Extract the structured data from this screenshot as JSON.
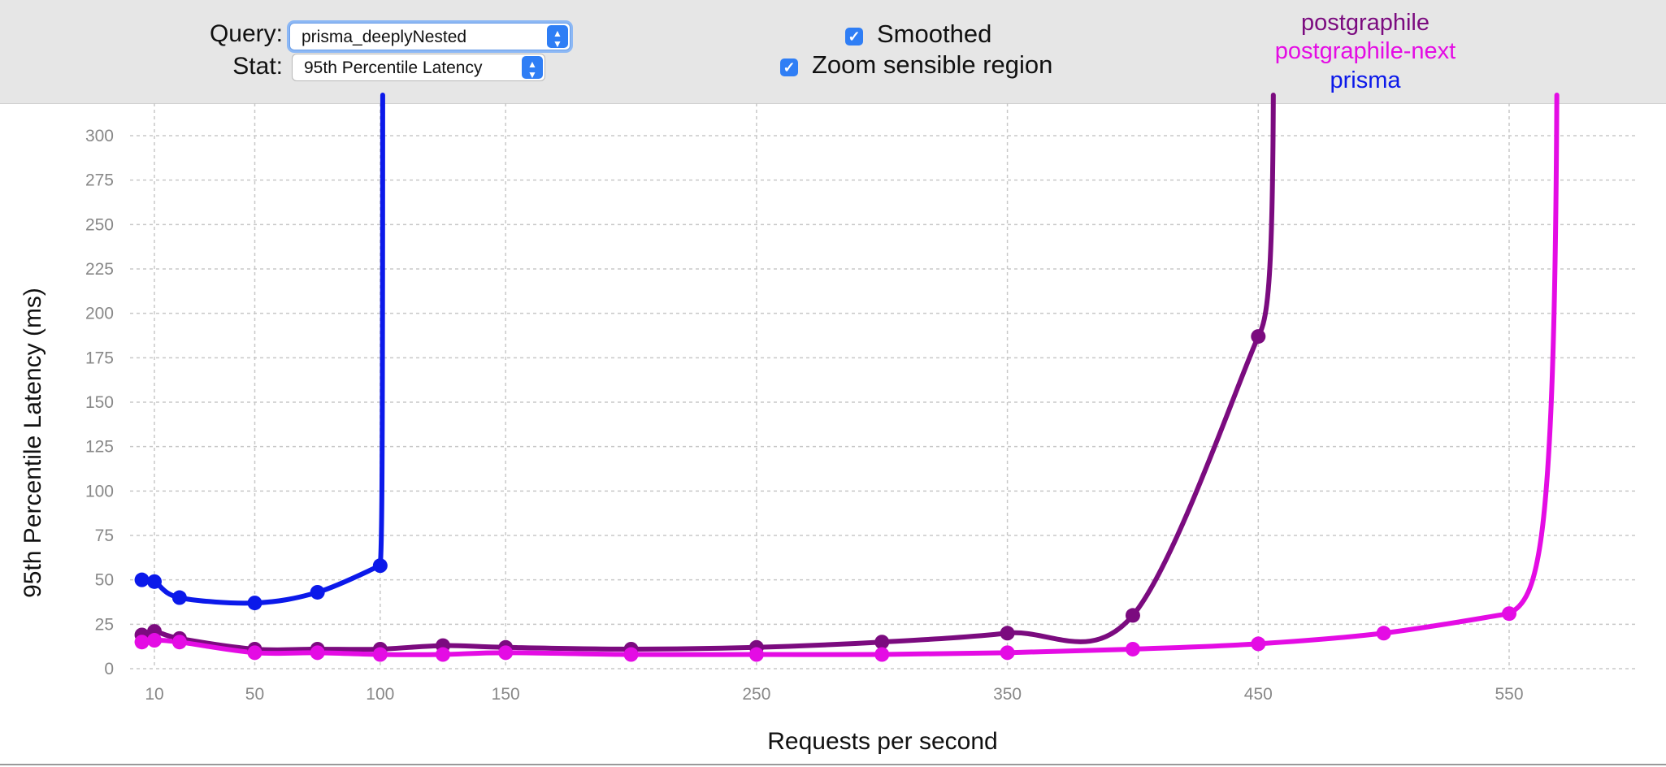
{
  "controls": {
    "query_label": "Query:",
    "query_value": "prisma_deeplyNested",
    "stat_label": "Stat:",
    "stat_value": "95th Percentile Latency",
    "smoothed_label": "Smoothed",
    "smoothed_checked": true,
    "zoom_label": "Zoom sensible region",
    "zoom_checked": true
  },
  "legend": [
    {
      "name": "postgraphile",
      "color": "#7b0b7f"
    },
    {
      "name": "postgraphile-next",
      "color": "#e40ce4"
    },
    {
      "name": "prisma",
      "color": "#0b19ea"
    }
  ],
  "chart_data": {
    "type": "line",
    "xlabel": "Requests per second",
    "ylabel": "95th Percentile Latency (ms)",
    "xlim": [
      0,
      595
    ],
    "ylim": [
      0,
      300
    ],
    "grid": true,
    "legend_position": "top-right",
    "xticks": [
      10,
      50,
      100,
      150,
      250,
      350,
      450,
      550
    ],
    "yticks": [
      0,
      25,
      50,
      75,
      100,
      125,
      150,
      175,
      200,
      225,
      250,
      275,
      300
    ],
    "series": [
      {
        "name": "prisma",
        "color": "#0b19ea",
        "x": [
          5,
          10,
          20,
          50,
          75,
          100
        ],
        "y": [
          50,
          49,
          40,
          37,
          43,
          58
        ],
        "tail_to": [
          101,
          340
        ]
      },
      {
        "name": "postgraphile",
        "color": "#7b0b7f",
        "x": [
          5,
          10,
          20,
          50,
          75,
          100,
          125,
          150,
          200,
          250,
          300,
          350,
          400,
          450
        ],
        "y": [
          19,
          21,
          17,
          11,
          11,
          11,
          13,
          12,
          11,
          12,
          15,
          20,
          30,
          187
        ],
        "tail_to": [
          456,
          340
        ]
      },
      {
        "name": "postgraphile-next",
        "color": "#e40ce4",
        "x": [
          5,
          10,
          20,
          50,
          75,
          100,
          125,
          150,
          200,
          250,
          300,
          350,
          400,
          450,
          500,
          550
        ],
        "y": [
          15,
          16,
          15,
          9,
          9,
          8,
          8,
          9,
          8,
          8,
          8,
          9,
          11,
          14,
          20,
          31
        ],
        "tail_to": [
          569,
          340
        ]
      }
    ]
  }
}
